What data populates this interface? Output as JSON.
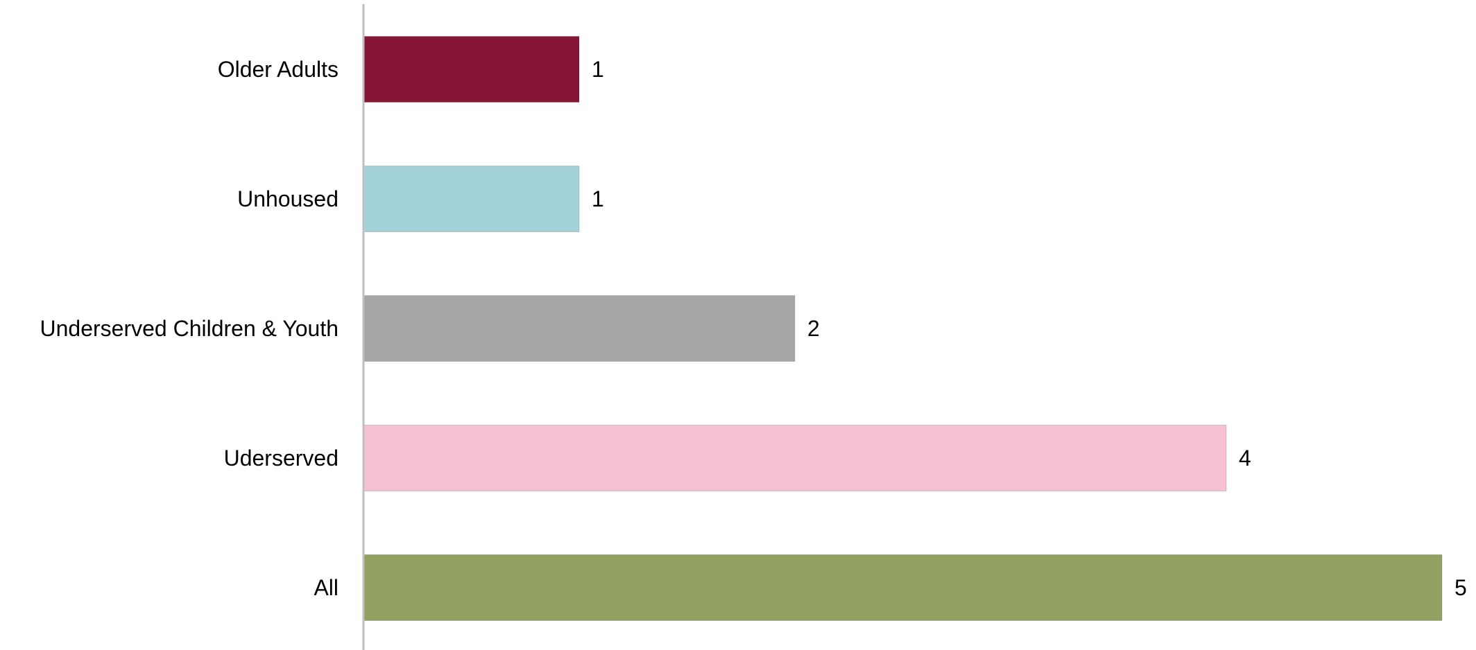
{
  "chart_data": {
    "type": "bar",
    "orientation": "horizontal",
    "title": "",
    "xlabel": "",
    "ylabel": "",
    "categories": [
      "Older Adults",
      "Unhoused",
      "Underserved Children & Youth",
      "Uderserved",
      "All"
    ],
    "values": [
      1,
      1,
      2,
      4,
      5
    ],
    "colors": [
      "#861535",
      "#a3d3d9",
      "#a6a6a6",
      "#f5c0d0",
      "#91a162"
    ],
    "xlim": [
      0,
      5
    ],
    "grid": false,
    "legend": "none",
    "data_labels": true
  }
}
